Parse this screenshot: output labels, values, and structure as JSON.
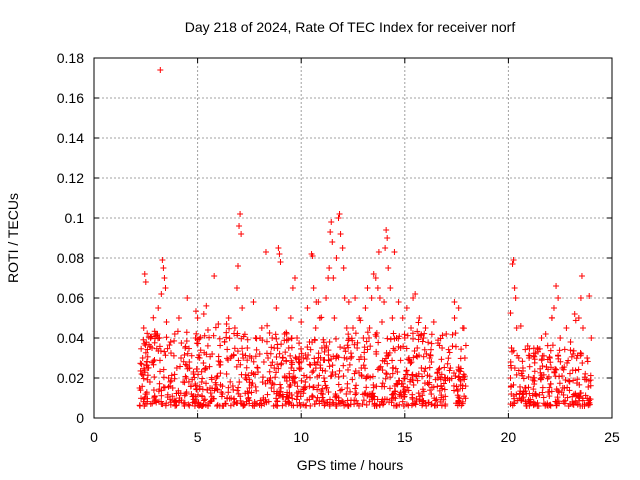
{
  "chart_data": {
    "type": "scatter",
    "title": "Day 218 of 2024, Rate Of TEC Index for receiver norf",
    "xlabel": "GPS time / hours",
    "ylabel": "ROTI / TECUs",
    "xlim": [
      0,
      25
    ],
    "ylim": [
      0,
      0.18
    ],
    "grid": true,
    "legend": "none",
    "marker": "+",
    "color": "#ff0000",
    "x_ticks": [
      {
        "value": 0,
        "label": "0"
      },
      {
        "value": 5,
        "label": "5"
      },
      {
        "value": 10,
        "label": "10"
      },
      {
        "value": 15,
        "label": "15"
      },
      {
        "value": 20,
        "label": "20"
      },
      {
        "value": 25,
        "label": "25"
      }
    ],
    "y_ticks": [
      {
        "value": 0,
        "label": "0"
      },
      {
        "value": 0.02,
        "label": "0.02"
      },
      {
        "value": 0.04,
        "label": "0.04"
      },
      {
        "value": 0.06,
        "label": "0.06"
      },
      {
        "value": 0.08,
        "label": "0.08"
      },
      {
        "value": 0.1,
        "label": "0.1"
      },
      {
        "value": 0.12,
        "label": "0.12"
      },
      {
        "value": 0.14,
        "label": "0.14"
      },
      {
        "value": 0.16,
        "label": "0.16"
      },
      {
        "value": 0.18,
        "label": "0.18"
      }
    ],
    "series": [
      {
        "points": [
          [
            2.2,
            0.015
          ],
          [
            2.3,
            0.022
          ],
          [
            2.35,
            0.03
          ],
          [
            2.4,
            0.045
          ],
          [
            2.45,
            0.072
          ],
          [
            2.5,
            0.068
          ],
          [
            2.55,
            0.012
          ],
          [
            2.6,
            0.025
          ],
          [
            2.7,
            0.018
          ],
          [
            2.8,
            0.035
          ],
          [
            2.9,
            0.01
          ],
          [
            3.0,
            0.042
          ],
          [
            3.1,
            0.055
          ],
          [
            3.2,
            0.174
          ],
          [
            3.25,
            0.062
          ],
          [
            3.3,
            0.079
          ],
          [
            3.35,
            0.075
          ],
          [
            3.4,
            0.07
          ],
          [
            3.45,
            0.065
          ],
          [
            3.5,
            0.048
          ],
          [
            3.6,
            0.02
          ],
          [
            3.7,
            0.038
          ],
          [
            3.8,
            0.015
          ],
          [
            3.9,
            0.042
          ],
          [
            4.0,
            0.025
          ],
          [
            4.1,
            0.05
          ],
          [
            4.2,
            0.03
          ],
          [
            4.3,
            0.018
          ],
          [
            4.4,
            0.035
          ],
          [
            4.5,
            0.06
          ],
          [
            4.6,
            0.028
          ],
          [
            4.7,
            0.012
          ],
          [
            4.8,
            0.022
          ],
          [
            4.9,
            0.04
          ],
          [
            5.0,
            0.05
          ],
          [
            5.1,
            0.03
          ],
          [
            5.2,
            0.018
          ],
          [
            5.3,
            0.052
          ],
          [
            5.4,
            0.025
          ],
          [
            5.5,
            0.044
          ],
          [
            5.6,
            0.015
          ],
          [
            5.7,
            0.032
          ],
          [
            5.8,
            0.071
          ],
          [
            5.9,
            0.02
          ],
          [
            6.0,
            0.047
          ],
          [
            6.1,
            0.028
          ],
          [
            6.2,
            0.012
          ],
          [
            6.3,
            0.038
          ],
          [
            6.4,
            0.022
          ],
          [
            6.5,
            0.05
          ],
          [
            6.6,
            0.03
          ],
          [
            6.7,
            0.016
          ],
          [
            6.8,
            0.045
          ],
          [
            6.9,
            0.065
          ],
          [
            6.95,
            0.076
          ],
          [
            7.0,
            0.096
          ],
          [
            7.05,
            0.102
          ],
          [
            7.1,
            0.092
          ],
          [
            7.15,
            0.055
          ],
          [
            7.2,
            0.03
          ],
          [
            7.3,
            0.02
          ],
          [
            7.4,
            0.035
          ],
          [
            7.5,
            0.015
          ],
          [
            7.6,
            0.03
          ],
          [
            7.7,
            0.022
          ],
          [
            7.8,
            0.04
          ],
          [
            7.9,
            0.025
          ],
          [
            8.0,
            0.032
          ],
          [
            8.1,
            0.045
          ],
          [
            8.2,
            0.028
          ],
          [
            8.3,
            0.083
          ],
          [
            8.4,
            0.03
          ],
          [
            8.5,
            0.018
          ],
          [
            8.6,
            0.04
          ],
          [
            8.7,
            0.025
          ],
          [
            8.8,
            0.055
          ],
          [
            8.9,
            0.085
          ],
          [
            8.95,
            0.082
          ],
          [
            9.0,
            0.078
          ],
          [
            9.1,
            0.03
          ],
          [
            9.2,
            0.042
          ],
          [
            9.3,
            0.02
          ],
          [
            9.4,
            0.035
          ],
          [
            9.5,
            0.05
          ],
          [
            9.6,
            0.065
          ],
          [
            9.7,
            0.07
          ],
          [
            9.8,
            0.04
          ],
          [
            9.9,
            0.025
          ],
          [
            10.0,
            0.048
          ],
          [
            10.1,
            0.03
          ],
          [
            10.2,
            0.018
          ],
          [
            10.3,
            0.055
          ],
          [
            10.4,
            0.038
          ],
          [
            10.5,
            0.082
          ],
          [
            10.55,
            0.081
          ],
          [
            10.6,
            0.065
          ],
          [
            10.7,
            0.045
          ],
          [
            10.8,
            0.028
          ],
          [
            10.9,
            0.05
          ],
          [
            11.0,
            0.035
          ],
          [
            11.1,
            0.02
          ],
          [
            11.2,
            0.06
          ],
          [
            11.3,
            0.07
          ],
          [
            11.35,
            0.075
          ],
          [
            11.4,
            0.093
          ],
          [
            11.45,
            0.098
          ],
          [
            11.5,
            0.088
          ],
          [
            11.55,
            0.07
          ],
          [
            11.6,
            0.05
          ],
          [
            11.7,
            0.08
          ],
          [
            11.8,
            0.1
          ],
          [
            11.85,
            0.102
          ],
          [
            11.9,
            0.092
          ],
          [
            12.0,
            0.085
          ],
          [
            12.05,
            0.075
          ],
          [
            12.1,
            0.06
          ],
          [
            12.2,
            0.045
          ],
          [
            12.3,
            0.058
          ],
          [
            12.4,
            0.03
          ],
          [
            12.5,
            0.045
          ],
          [
            12.6,
            0.06
          ],
          [
            12.7,
            0.035
          ],
          [
            12.8,
            0.05
          ],
          [
            12.9,
            0.025
          ],
          [
            13.0,
            0.04
          ],
          [
            13.1,
            0.055
          ],
          [
            13.2,
            0.065
          ],
          [
            13.3,
            0.045
          ],
          [
            13.4,
            0.06
          ],
          [
            13.5,
            0.072
          ],
          [
            13.6,
            0.07
          ],
          [
            13.7,
            0.065
          ],
          [
            13.75,
            0.083
          ],
          [
            13.8,
            0.06
          ],
          [
            13.9,
            0.048
          ],
          [
            14.0,
            0.058
          ],
          [
            14.05,
            0.085
          ],
          [
            14.1,
            0.094
          ],
          [
            14.15,
            0.09
          ],
          [
            14.2,
            0.075
          ],
          [
            14.3,
            0.065
          ],
          [
            14.4,
            0.05
          ],
          [
            14.5,
            0.083
          ],
          [
            14.6,
            0.04
          ],
          [
            14.7,
            0.058
          ],
          [
            14.8,
            0.035
          ],
          [
            14.9,
            0.05
          ],
          [
            15.0,
            0.04
          ],
          [
            15.1,
            0.055
          ],
          [
            15.2,
            0.03
          ],
          [
            15.3,
            0.045
          ],
          [
            15.4,
            0.06
          ],
          [
            15.5,
            0.062
          ],
          [
            15.6,
            0.035
          ],
          [
            15.7,
            0.05
          ],
          [
            15.8,
            0.025
          ],
          [
            15.9,
            0.04
          ],
          [
            16.0,
            0.045
          ],
          [
            16.2,
            0.03
          ],
          [
            16.4,
            0.048
          ],
          [
            16.6,
            0.02
          ],
          [
            16.8,
            0.035
          ],
          [
            17.0,
            0.042
          ],
          [
            17.2,
            0.025
          ],
          [
            17.4,
            0.05
          ],
          [
            17.6,
            0.055
          ],
          [
            17.8,
            0.045
          ],
          [
            17.9,
            0.03
          ],
          [
            20.1,
            0.02
          ],
          [
            20.15,
            0.035
          ],
          [
            20.2,
            0.077
          ],
          [
            20.25,
            0.079
          ],
          [
            20.3,
            0.065
          ],
          [
            20.35,
            0.06
          ],
          [
            20.4,
            0.045
          ],
          [
            20.5,
            0.03
          ],
          [
            20.6,
            0.046
          ],
          [
            20.7,
            0.025
          ],
          [
            20.8,
            0.015
          ],
          [
            21.0,
            0.03
          ],
          [
            21.2,
            0.02
          ],
          [
            21.4,
            0.035
          ],
          [
            21.6,
            0.04
          ],
          [
            21.8,
            0.042
          ],
          [
            22.0,
            0.03
          ],
          [
            22.1,
            0.05
          ],
          [
            22.2,
            0.055
          ],
          [
            22.3,
            0.066
          ],
          [
            22.4,
            0.06
          ],
          [
            22.5,
            0.04
          ],
          [
            22.6,
            0.025
          ],
          [
            22.8,
            0.045
          ],
          [
            23.0,
            0.038
          ],
          [
            23.2,
            0.052
          ],
          [
            23.4,
            0.05
          ],
          [
            23.5,
            0.06
          ],
          [
            23.55,
            0.071
          ],
          [
            23.6,
            0.045
          ],
          [
            23.8,
            0.03
          ],
          [
            23.9,
            0.061
          ],
          [
            24.0,
            0.04
          ]
        ]
      }
    ]
  }
}
